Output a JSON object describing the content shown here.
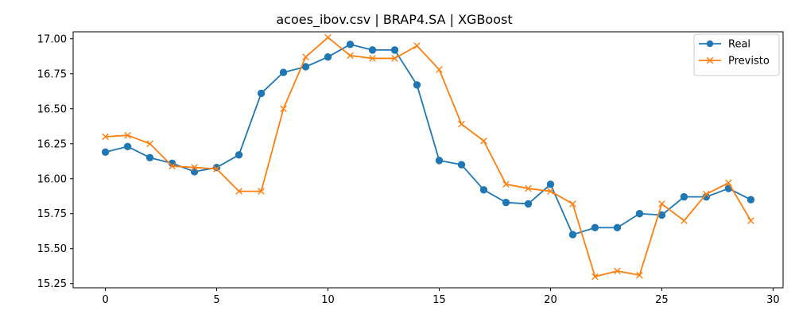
{
  "chart_data": {
    "type": "line",
    "title": "acoes_ibov.csv | BRAP4.SA | XGBoost",
    "xlabel": "",
    "ylabel": "",
    "x": [
      0,
      1,
      2,
      3,
      4,
      5,
      6,
      7,
      8,
      9,
      10,
      11,
      12,
      13,
      14,
      15,
      16,
      17,
      18,
      19,
      20,
      21,
      22,
      23,
      24,
      25,
      26,
      27,
      28,
      29
    ],
    "xlim": [
      -1.45,
      30.45
    ],
    "ylim": [
      15.22,
      17.05
    ],
    "xticks": [
      0,
      5,
      10,
      15,
      20,
      25,
      30
    ],
    "xtick_labels": [
      "0",
      "5",
      "10",
      "15",
      "20",
      "25",
      "30"
    ],
    "yticks": [
      15.25,
      15.5,
      15.75,
      16.0,
      16.25,
      16.5,
      16.75,
      17.0
    ],
    "ytick_labels": [
      "15.25",
      "15.50",
      "15.75",
      "16.00",
      "16.25",
      "16.50",
      "16.75",
      "17.00"
    ],
    "grid": false,
    "legend_position": "top-right",
    "series": [
      {
        "name": "Real",
        "color": "#1f77b4",
        "marker": "circle",
        "values": [
          16.19,
          16.23,
          16.15,
          16.11,
          16.05,
          16.08,
          16.17,
          16.61,
          16.76,
          16.8,
          16.87,
          16.96,
          16.92,
          16.92,
          16.67,
          16.13,
          16.1,
          15.92,
          15.83,
          15.82,
          15.96,
          15.6,
          15.65,
          15.65,
          15.75,
          15.74,
          15.87,
          15.87,
          15.93,
          15.85
        ]
      },
      {
        "name": "Previsto",
        "color": "#ff7f0e",
        "marker": "x",
        "values": [
          16.3,
          16.31,
          16.25,
          16.09,
          16.08,
          16.07,
          15.91,
          15.91,
          16.5,
          16.87,
          17.01,
          16.88,
          16.86,
          16.86,
          16.95,
          16.78,
          16.39,
          16.27,
          15.96,
          15.93,
          15.91,
          15.82,
          15.3,
          15.34,
          15.31,
          15.82,
          15.7,
          15.89,
          15.97,
          15.7
        ]
      }
    ]
  }
}
